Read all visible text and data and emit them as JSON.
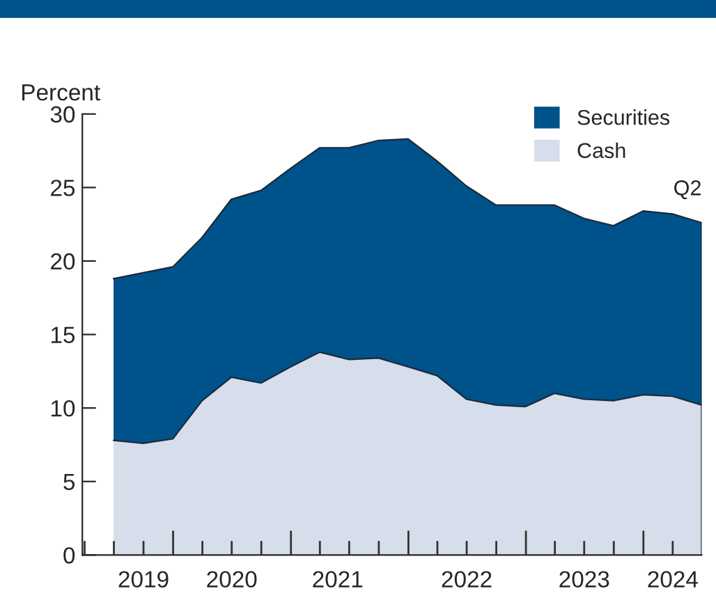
{
  "chart_data": {
    "type": "area",
    "stacked": true,
    "ylabel": "Percent",
    "x": [
      "2019-06-30",
      "2019-09-30",
      "2019-12-31",
      "2020-03-31",
      "2020-06-30",
      "2020-09-30",
      "2020-12-31",
      "2021-03-31",
      "2021-06-30",
      "2021-09-30",
      "2021-12-31",
      "2022-03-31",
      "2022-06-30",
      "2022-09-30",
      "2022-12-31",
      "2023-03-31",
      "2023-06-30",
      "2023-09-30",
      "2023-12-31",
      "2024-03-31",
      "2024-06-30"
    ],
    "series": [
      {
        "name": "Cash",
        "color": "#d5deea",
        "values": [
          7.8,
          7.6,
          7.9,
          10.5,
          12.1,
          11.7,
          12.8,
          13.8,
          13.3,
          13.4,
          12.8,
          12.2,
          10.6,
          10.2,
          10.1,
          11.0,
          10.6,
          10.5,
          10.9,
          10.8,
          10.2
        ]
      },
      {
        "name": "Securities",
        "color": "#00528a",
        "values": [
          11.0,
          11.6,
          11.7,
          11.1,
          12.1,
          13.1,
          13.5,
          13.9,
          14.4,
          14.8,
          15.5,
          14.6,
          14.5,
          13.6,
          13.7,
          12.8,
          12.3,
          11.9,
          12.5,
          12.4,
          12.4
        ]
      }
    ],
    "xlim": [
      "2019-03-25",
      "2024-06-30"
    ],
    "xticks": [
      {
        "value": "2019-10-01",
        "label": "2019"
      },
      {
        "value": "2020-07-01",
        "label": "2020"
      },
      {
        "value": "2021-05-26",
        "label": "2021"
      },
      {
        "value": "2022-07-01",
        "label": "2022"
      },
      {
        "value": "2023-07-01",
        "label": "2023"
      },
      {
        "value": "2024-04-01",
        "label": "2024"
      }
    ],
    "ylim": [
      0,
      30
    ],
    "yticks": [
      0,
      5,
      10,
      15,
      20,
      25,
      30
    ],
    "annotations": [
      {
        "text": "Q2",
        "x": "2024-06-30",
        "y": 22.6
      }
    ],
    "legend": "top right",
    "grid": false
  }
}
